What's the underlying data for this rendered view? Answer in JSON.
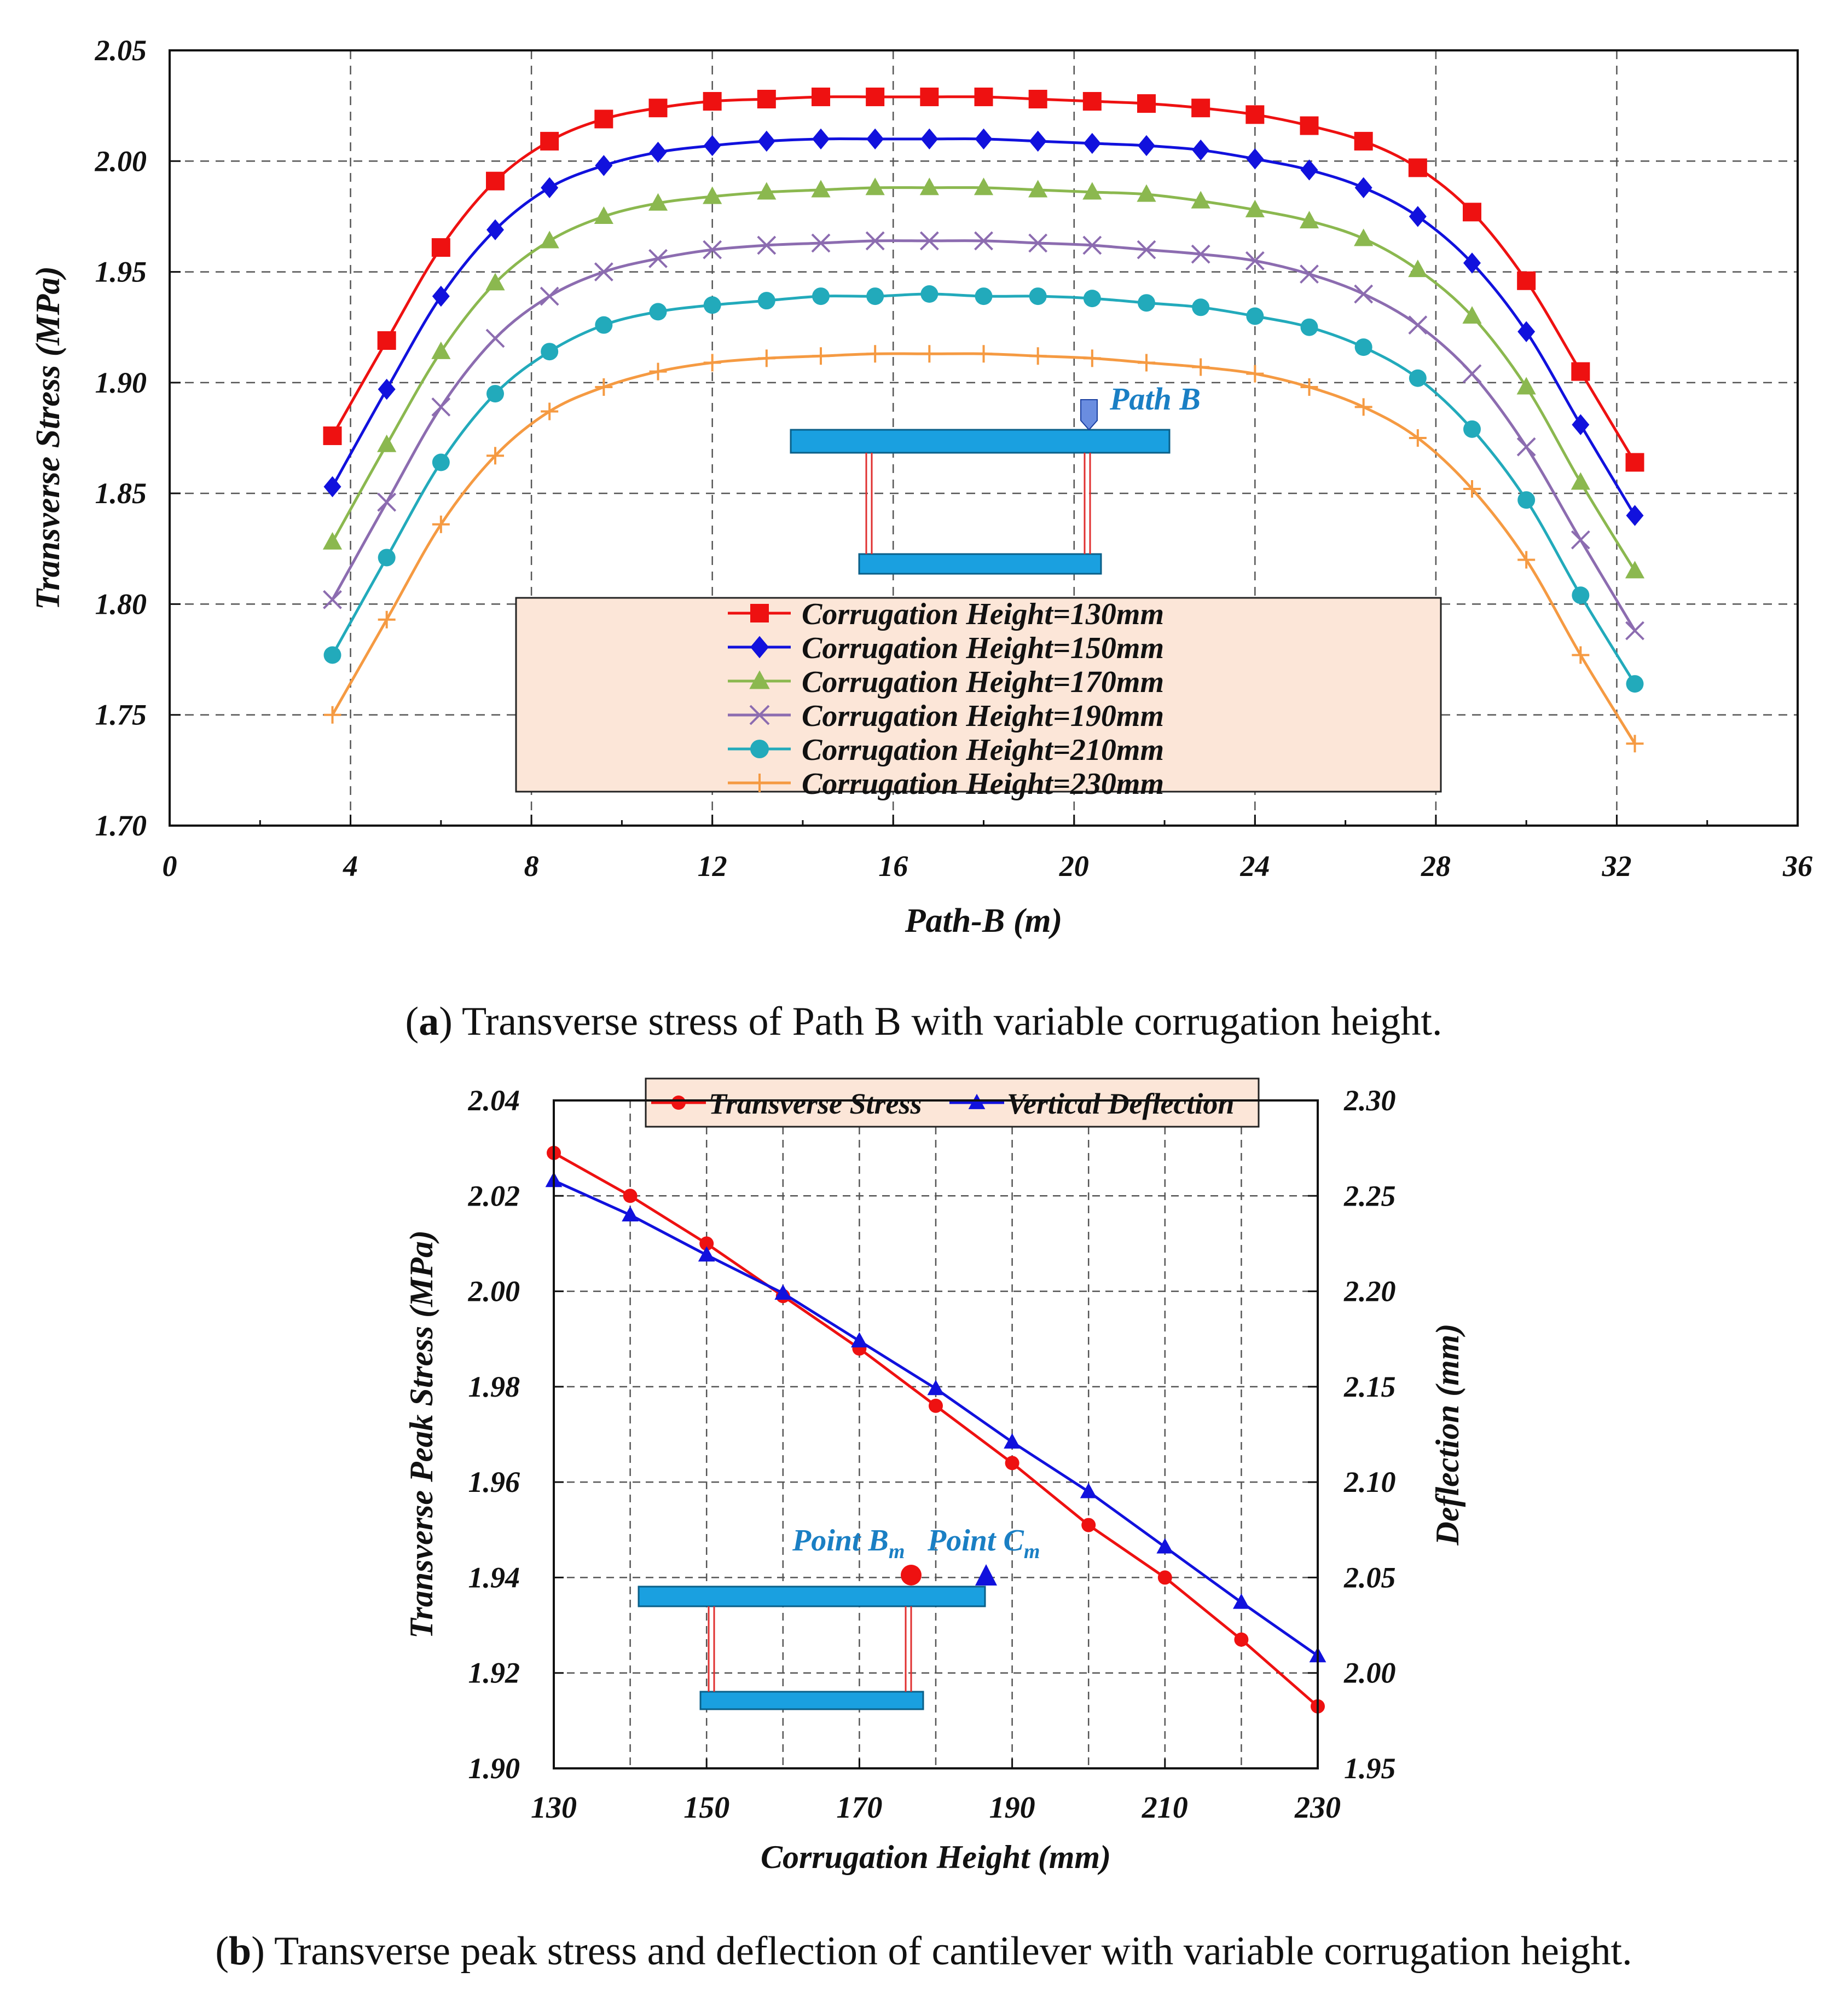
{
  "chart_data": [
    {
      "id": "a",
      "type": "line",
      "xlabel": "Path-B (m)",
      "ylabel": "Transverse Stress (MPa)",
      "xlim": [
        0,
        36
      ],
      "ylim": [
        1.7,
        2.05
      ],
      "xticks": [
        "0",
        "4",
        "8",
        "12",
        "16",
        "20",
        "24",
        "28",
        "32",
        "36"
      ],
      "yticks": [
        "1.70",
        "1.75",
        "1.80",
        "1.85",
        "1.90",
        "1.95",
        "2.00",
        "2.05"
      ],
      "grid": true,
      "legend_position": "bottom-center",
      "inset_label": "Path B",
      "caption": {
        "letter": "a",
        "text": ") Transverse stress of Path B with variable corrugation height."
      },
      "x": [
        3.6,
        4.8,
        6.0,
        7.2,
        8.4,
        9.6,
        10.8,
        12.0,
        13.2,
        14.4,
        15.6,
        16.8,
        18.0,
        19.2,
        20.4,
        21.6,
        22.8,
        24.0,
        25.2,
        26.4,
        27.6,
        28.8,
        30.0,
        31.2,
        32.4
      ],
      "series": [
        {
          "name": "Corrugation Height=130mm",
          "color": "#ee1111",
          "marker": "square",
          "values": [
            1.876,
            1.919,
            1.961,
            1.991,
            2.009,
            2.019,
            2.024,
            2.027,
            2.028,
            2.029,
            2.029,
            2.029,
            2.029,
            2.028,
            2.027,
            2.026,
            2.024,
            2.021,
            2.016,
            2.009,
            1.997,
            1.977,
            1.946,
            1.905,
            1.864
          ]
        },
        {
          "name": "Corrugation Height=150mm",
          "color": "#1111dd",
          "marker": "diamond",
          "values": [
            1.853,
            1.897,
            1.939,
            1.969,
            1.988,
            1.998,
            2.004,
            2.007,
            2.009,
            2.01,
            2.01,
            2.01,
            2.01,
            2.009,
            2.008,
            2.007,
            2.005,
            2.001,
            1.996,
            1.988,
            1.975,
            1.954,
            1.923,
            1.881,
            1.84
          ]
        },
        {
          "name": "Corrugation Height=170mm",
          "color": "#8bb84f",
          "marker": "triangle",
          "values": [
            1.828,
            1.872,
            1.914,
            1.945,
            1.964,
            1.975,
            1.981,
            1.984,
            1.986,
            1.987,
            1.988,
            1.988,
            1.988,
            1.987,
            1.986,
            1.985,
            1.982,
            1.978,
            1.973,
            1.965,
            1.951,
            1.93,
            1.898,
            1.855,
            1.815
          ]
        },
        {
          "name": "Corrugation Height=190mm",
          "color": "#8c6cb0",
          "marker": "x",
          "values": [
            1.802,
            1.846,
            1.889,
            1.92,
            1.939,
            1.95,
            1.956,
            1.96,
            1.962,
            1.963,
            1.964,
            1.964,
            1.964,
            1.963,
            1.962,
            1.96,
            1.958,
            1.955,
            1.949,
            1.94,
            1.926,
            1.904,
            1.871,
            1.829,
            1.788
          ]
        },
        {
          "name": "Corrugation Height=210mm",
          "color": "#22aabb",
          "marker": "circle",
          "values": [
            1.777,
            1.821,
            1.864,
            1.895,
            1.914,
            1.926,
            1.932,
            1.935,
            1.937,
            1.939,
            1.939,
            1.94,
            1.939,
            1.939,
            1.938,
            1.936,
            1.934,
            1.93,
            1.925,
            1.916,
            1.902,
            1.879,
            1.847,
            1.804,
            1.764
          ]
        },
        {
          "name": "Corrugation Height=230mm",
          "color": "#f59a42",
          "marker": "plus",
          "values": [
            1.75,
            1.793,
            1.836,
            1.867,
            1.887,
            1.898,
            1.905,
            1.909,
            1.911,
            1.912,
            1.913,
            1.913,
            1.913,
            1.912,
            1.911,
            1.909,
            1.907,
            1.904,
            1.898,
            1.889,
            1.875,
            1.852,
            1.82,
            1.777,
            1.737
          ]
        }
      ]
    },
    {
      "id": "b",
      "type": "line",
      "xlabel": "Corrugation Height (mm)",
      "ylabel": "Transverse Peak Stress (MPa)",
      "y2label": "Deflection (mm)",
      "xlim": [
        130,
        230
      ],
      "ylim": [
        1.9,
        2.04
      ],
      "y2lim": [
        1.95,
        2.3
      ],
      "xticks": [
        "130",
        "150",
        "170",
        "190",
        "210",
        "230"
      ],
      "yticks": [
        "1.90",
        "1.92",
        "1.94",
        "1.96",
        "1.98",
        "2.00",
        "2.02",
        "2.04"
      ],
      "y2ticks": [
        "1.95",
        "2.00",
        "2.05",
        "2.10",
        "2.15",
        "2.20",
        "2.25",
        "2.30"
      ],
      "grid": true,
      "legend_position": "top",
      "inset_labels": {
        "point_b": "Point B",
        "point_b_sub": "m",
        "point_c": "Point C",
        "point_c_sub": "m"
      },
      "caption": {
        "letter": "b",
        "text": ") Transverse peak stress and deflection of cantilever with variable corrugation height."
      },
      "x": [
        130,
        140,
        150,
        160,
        170,
        180,
        190,
        200,
        210,
        220,
        230
      ],
      "series": [
        {
          "name": "Transverse Stress",
          "axis": "left",
          "color": "#ee1111",
          "marker": "circle",
          "values": [
            2.029,
            2.02,
            2.01,
            1.999,
            1.988,
            1.976,
            1.964,
            1.951,
            1.94,
            1.927,
            1.913
          ]
        },
        {
          "name": "Vertical Deflection",
          "axis": "right",
          "color": "#1111dd",
          "marker": "triangle",
          "values": [
            2.258,
            2.24,
            2.219,
            2.199,
            2.174,
            2.149,
            2.121,
            2.095,
            2.066,
            2.037,
            2.009
          ]
        }
      ]
    }
  ]
}
